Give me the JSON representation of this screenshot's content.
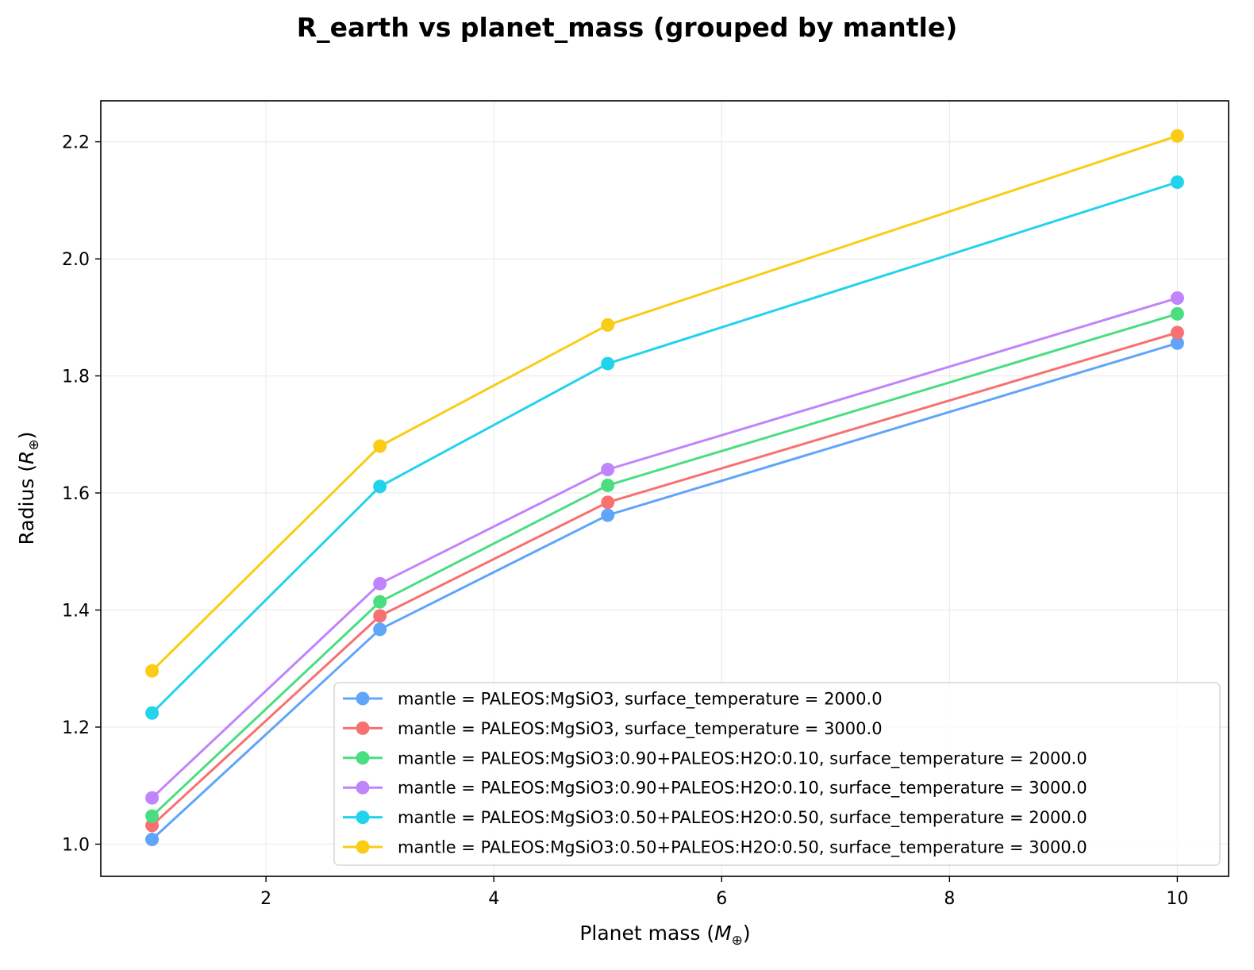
{
  "chart_data": {
    "type": "line",
    "title": "R_earth vs planet_mass (grouped by mantle)",
    "xlabel": {
      "prefix": "Planet mass (",
      "symbol": "M",
      "sub": "⊕",
      "suffix": ")"
    },
    "ylabel": {
      "prefix": "Radius (",
      "symbol": "R",
      "sub": "⊕",
      "suffix": ")"
    },
    "xlim": [
      0.55,
      10.45
    ],
    "ylim": [
      0.945,
      2.27
    ],
    "xticks": [
      2,
      4,
      6,
      8,
      10
    ],
    "xtick_labels": [
      "2",
      "4",
      "6",
      "8",
      "10"
    ],
    "yticks": [
      1.0,
      1.2,
      1.4,
      1.6,
      1.8,
      2.0,
      2.2
    ],
    "ytick_labels": [
      "1.0",
      "1.2",
      "1.4",
      "1.6",
      "1.8",
      "2.0",
      "2.2"
    ],
    "grid": true,
    "legend_position": "lower-right",
    "x": [
      1,
      3,
      5,
      10
    ],
    "series": [
      {
        "name": "mantle = PALEOS:MgSiO3, surface_temperature = 2000.0",
        "color": "#60a5fa",
        "values": [
          1.008,
          1.367,
          1.562,
          1.856
        ]
      },
      {
        "name": "mantle = PALEOS:MgSiO3, surface_temperature = 3000.0",
        "color": "#f87171",
        "values": [
          1.032,
          1.39,
          1.584,
          1.874
        ]
      },
      {
        "name": "mantle = PALEOS:MgSiO3:0.90+PALEOS:H2O:0.10, surface_temperature = 2000.0",
        "color": "#4ade80",
        "values": [
          1.048,
          1.414,
          1.613,
          1.906
        ]
      },
      {
        "name": "mantle = PALEOS:MgSiO3:0.90+PALEOS:H2O:0.10, surface_temperature = 3000.0",
        "color": "#c084fc",
        "values": [
          1.079,
          1.445,
          1.64,
          1.933
        ]
      },
      {
        "name": "mantle = PALEOS:MgSiO3:0.50+PALEOS:H2O:0.50, surface_temperature = 2000.0",
        "color": "#22d3ee",
        "values": [
          1.224,
          1.611,
          1.821,
          2.131
        ]
      },
      {
        "name": "mantle = PALEOS:MgSiO3:0.50+PALEOS:H2O:0.50, surface_temperature = 3000.0",
        "color": "#facc15",
        "values": [
          1.296,
          1.68,
          1.887,
          2.21
        ]
      }
    ]
  }
}
